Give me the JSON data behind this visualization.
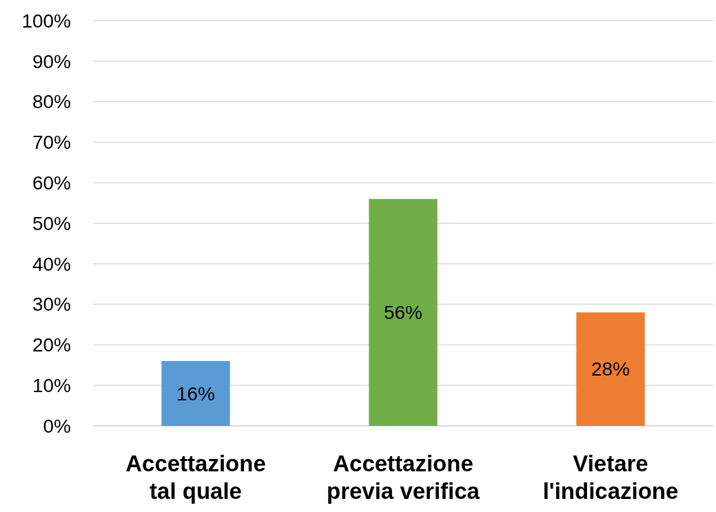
{
  "chart_data": {
    "type": "bar",
    "categories": [
      "Accettazione tal quale",
      "Accettazione previa verifica",
      "Vietare l'indicazione"
    ],
    "values": [
      16,
      56,
      28
    ],
    "colors": [
      "#5b9bd5",
      "#70ad47",
      "#ed7d31"
    ],
    "value_labels": [
      "16%",
      "56%",
      "28%"
    ],
    "ylim": [
      0,
      100
    ],
    "yticks": [
      {
        "value": 0,
        "label": "0%"
      },
      {
        "value": 10,
        "label": "10%"
      },
      {
        "value": 20,
        "label": "20%"
      },
      {
        "value": 30,
        "label": "30%"
      },
      {
        "value": 40,
        "label": "40%"
      },
      {
        "value": 50,
        "label": "50%"
      },
      {
        "value": 60,
        "label": "60%"
      },
      {
        "value": 70,
        "label": "70%"
      },
      {
        "value": 80,
        "label": "80%"
      },
      {
        "value": 90,
        "label": "90%"
      },
      {
        "value": 100,
        "label": "100%"
      }
    ],
    "grid": "y"
  }
}
